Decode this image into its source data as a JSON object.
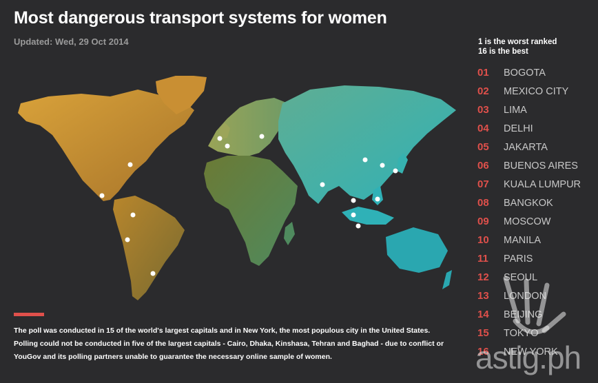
{
  "title": "Most dangerous transport systems for women",
  "updated": "Updated: Wed, 29 Oct 2014",
  "legend_note": [
    "1 is the worst ranked",
    "16 is the best"
  ],
  "rankings": [
    {
      "rank": "01",
      "city": "BOGOTA"
    },
    {
      "rank": "02",
      "city": "MEXICO CITY"
    },
    {
      "rank": "03",
      "city": "LIMA"
    },
    {
      "rank": "04",
      "city": "DELHI"
    },
    {
      "rank": "05",
      "city": "JAKARTA"
    },
    {
      "rank": "06",
      "city": "BUENOS AIRES"
    },
    {
      "rank": "07",
      "city": "KUALA LUMPUR"
    },
    {
      "rank": "08",
      "city": "BANGKOK"
    },
    {
      "rank": "09",
      "city": "MOSCOW"
    },
    {
      "rank": "10",
      "city": "MANILA"
    },
    {
      "rank": "11",
      "city": "PARIS"
    },
    {
      "rank": "12",
      "city": "SEOUL"
    },
    {
      "rank": "13",
      "city": "LONDON"
    },
    {
      "rank": "14",
      "city": "BEIJING"
    },
    {
      "rank": "15",
      "city": "TOKYO"
    },
    {
      "rank": "16",
      "city": "NEW YORK"
    }
  ],
  "footnote": [
    "The poll was conducted in 15 of the world's largest capitals and in New York, the most populous city in the United States.",
    "Polling could not be conducted in five of the largest capitals - Cairo, Dhaka, Kinshasa, Tehran and Baghad - due to conflict or",
    "YouGov and its polling partners unable to guarantee the necessary online sample of women."
  ],
  "watermark": "astig.ph",
  "colors": {
    "background": "#2b2b2d",
    "accent": "#e0504b",
    "americas": "#c8922e",
    "europe_africa": "#7a8a3e",
    "asia": "#3aaea8",
    "city_marker": "#ffffff"
  }
}
